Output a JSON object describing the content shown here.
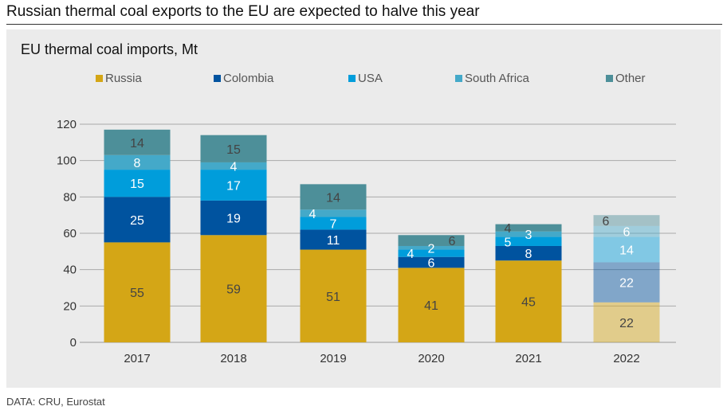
{
  "headline": "Russian thermal coal exports to the EU are expected to halve this year",
  "source": "DATA: CRU, Eurostat",
  "chart_data": {
    "type": "bar",
    "stacked": true,
    "title": "EU thermal coal imports, Mt",
    "categories": [
      "2017",
      "2018",
      "2019",
      "2020",
      "2021",
      "2022"
    ],
    "ylim": [
      0,
      120
    ],
    "yticks": [
      0,
      20,
      40,
      60,
      80,
      100,
      120
    ],
    "grid": true,
    "legend": "top",
    "forecast_category": "2022",
    "series": [
      {
        "name": "Russia",
        "color": "#d4a616",
        "values": [
          55,
          59,
          51,
          41,
          45,
          22
        ]
      },
      {
        "name": "Colombia",
        "color": "#00539f",
        "values": [
          25,
          19,
          11,
          6,
          8,
          22
        ]
      },
      {
        "name": "USA",
        "color": "#009ddb",
        "values": [
          15,
          17,
          7,
          4,
          5,
          14
        ]
      },
      {
        "name": "South Africa",
        "color": "#44a9c9",
        "values": [
          8,
          4,
          4,
          2,
          3,
          6
        ]
      },
      {
        "name": "Other",
        "color": "#4d8f99",
        "values": [
          14,
          15,
          14,
          6,
          4,
          6
        ]
      }
    ]
  }
}
